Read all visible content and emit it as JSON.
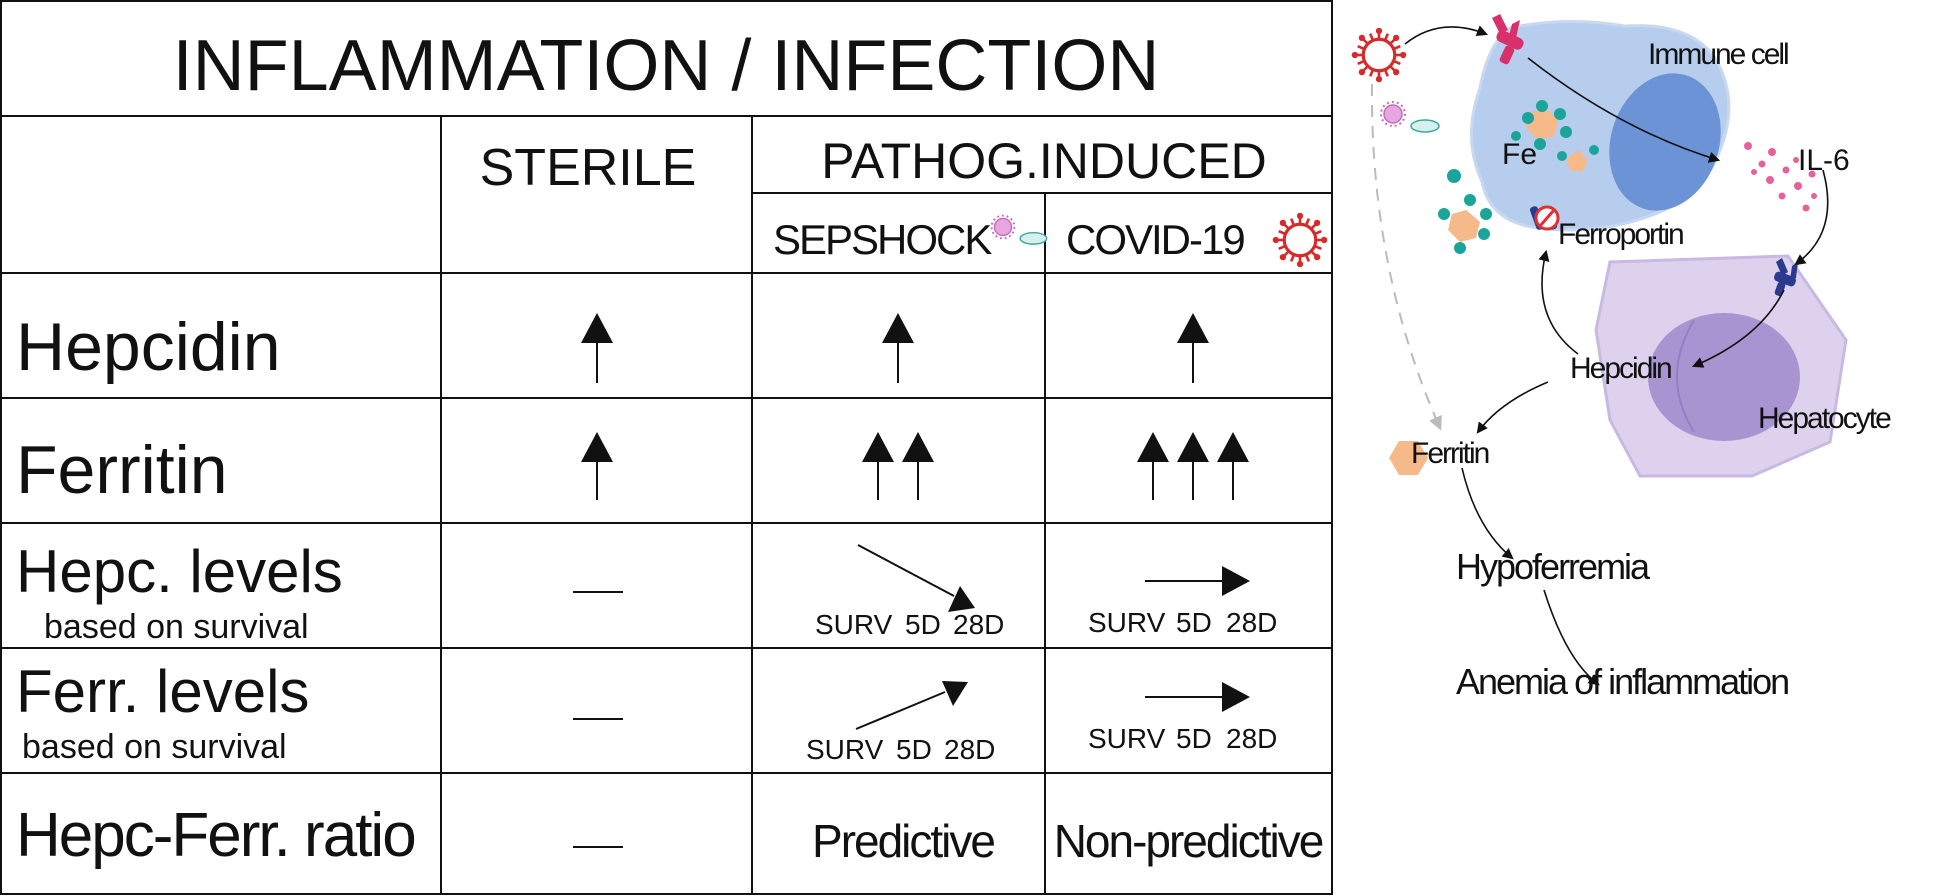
{
  "table": {
    "title": "INFLAMMATION / INFECTION",
    "col_sterile": "STERILE",
    "col_pathog": "PATHOG.INDUCED",
    "col_sepshock": "SEPSHOCK",
    "col_covid": "COVID-19",
    "rows": {
      "hepcidin": "Hepcidin",
      "ferritin": "Ferritin",
      "hepc_levels": "Hepc. levels",
      "hepc_levels_sub": "based on survival",
      "ferr_levels": "Ferr. levels",
      "ferr_levels_sub": "based on survival",
      "ratio": "Hepc-Ferr. ratio"
    },
    "axis_labels": {
      "surv": "SURV",
      "d5": "5D",
      "d28": "28D"
    },
    "ratio_sepshock": "Predictive",
    "ratio_covid": "Non-predictive",
    "up_arrow_counts": {
      "hepcidin": {
        "sterile": 1,
        "sepshock": 1,
        "covid": 1
      },
      "ferritin": {
        "sterile": 1,
        "sepshock": 2,
        "covid": 3
      }
    },
    "trends": {
      "hepc_levels": {
        "sterile": "none",
        "sepshock": "down",
        "covid": "flat"
      },
      "ferr_levels": {
        "sterile": "none",
        "sepshock": "up",
        "covid": "flat"
      }
    }
  },
  "diagram": {
    "immune_cell": "Immune cell",
    "fe": "Fe",
    "ferroportin": "Ferroportin",
    "il6": "IL-6",
    "hepcidin": "Hepcidin",
    "hepatocyte": "Hepatocyte",
    "ferritin": "Ferritin",
    "hypoferremia": "Hypoferremia",
    "anemia": "Anemia of inflammation"
  },
  "colors": {
    "virus_red": "#d52b2b",
    "immune_cell_blue": "#b7cdee",
    "nucleus_blue": "#6b93d6",
    "hepatocyte_purple": "#d9cdec",
    "hepatocyte_nucleus": "#a994d2",
    "iron_teal": "#1aa49a",
    "ferritin_orange": "#f6b98a",
    "il6_pink": "#e8609b",
    "receptor_pink": "#d8306a",
    "receptor_navy": "#2a3b8f"
  }
}
